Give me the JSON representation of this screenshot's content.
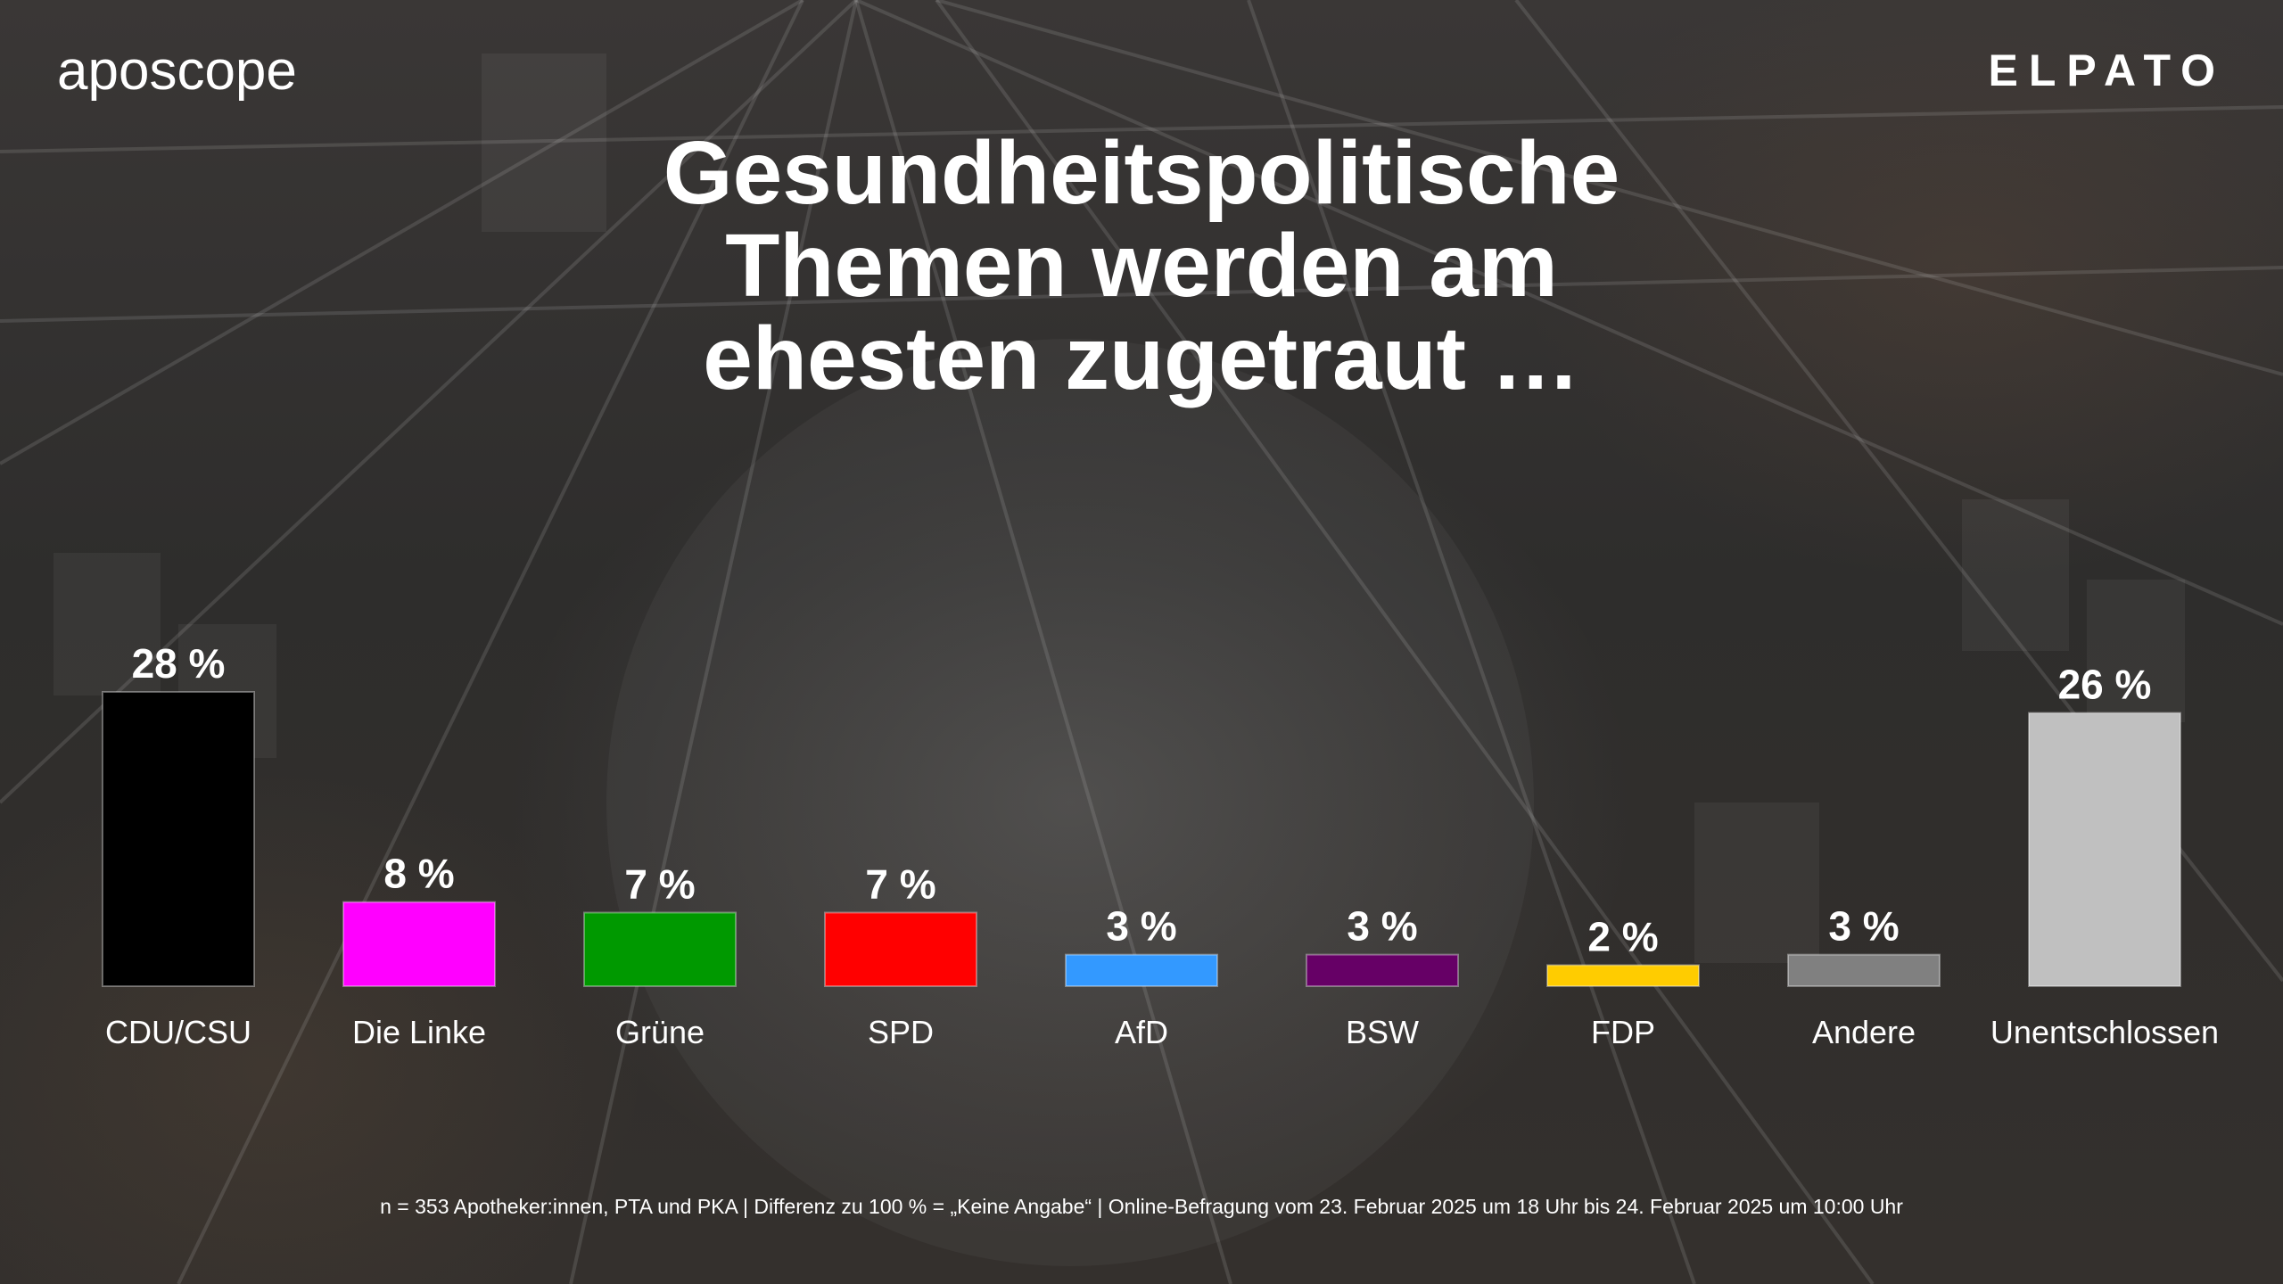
{
  "brand": {
    "left_logo": "aposcope",
    "right_logo": "ELPATO"
  },
  "title_lines": [
    "Gesundheitspolitische",
    "Themen werden am",
    "ehesten zugetraut …"
  ],
  "footnote": "n = 353 Apotheker:innen, PTA und PKA | Differenz zu 100 % = „Keine Angabe“ | Online-Befragung vom 23. Februar 2025 um 18 Uhr bis 24. Februar 2025 um 10:00 Uhr",
  "chart_data": {
    "type": "bar",
    "title": "Gesundheitspolitische Themen werden am ehesten zugetraut …",
    "xlabel": "",
    "ylabel": "",
    "categories": [
      "CDU/CSU",
      "Die Linke",
      "Grüne",
      "SPD",
      "AfD",
      "BSW",
      "FDP",
      "Andere",
      "Unentschlossen"
    ],
    "values": [
      28,
      8,
      7,
      7,
      3,
      3,
      2,
      3,
      26
    ],
    "value_labels": [
      "28 %",
      "8 %",
      "7 %",
      "7 %",
      "3 %",
      "3 %",
      "2 %",
      "3 %",
      "26 %"
    ],
    "colors": [
      "#000000",
      "#ff00ff",
      "#009900",
      "#ff0000",
      "#3399ff",
      "#660066",
      "#ffcc00",
      "#808080",
      "#c0c0c0"
    ],
    "unit": "%",
    "ylim": [
      0,
      28
    ],
    "grid": false,
    "legend": "none"
  }
}
